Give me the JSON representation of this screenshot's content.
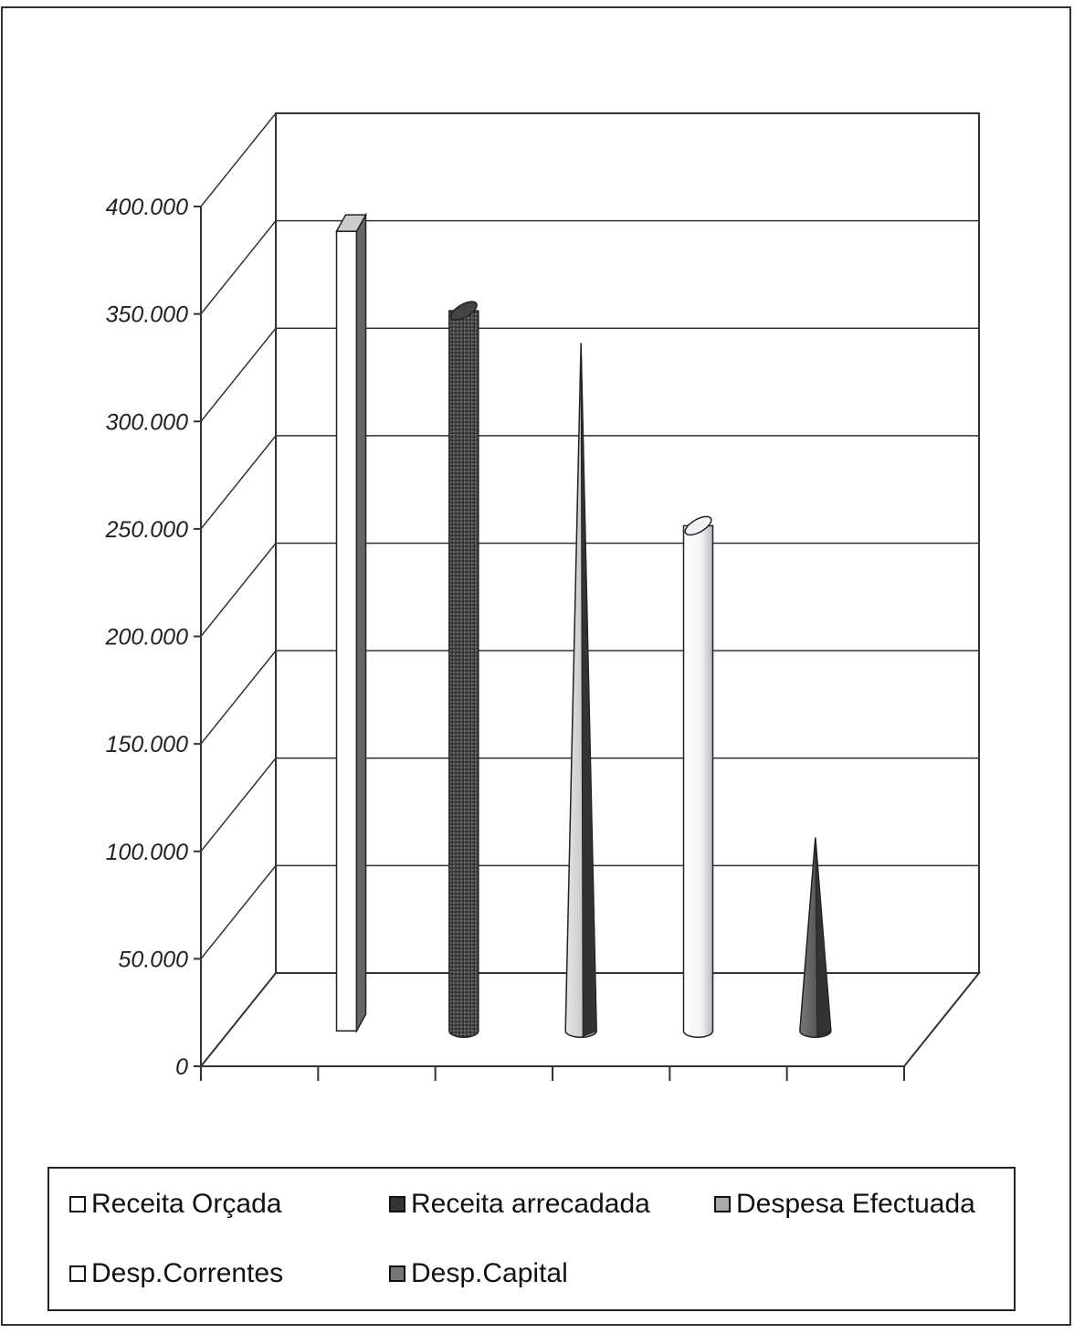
{
  "chart_data": {
    "type": "bar",
    "style": "3d-column",
    "categories": [
      ""
    ],
    "series": [
      {
        "name": "Receita Orçada",
        "values": [
          372000
        ],
        "shape": "box",
        "color": "#ffffff"
      },
      {
        "name": "Receita arrecadada",
        "values": [
          335000
        ],
        "shape": "cylinder",
        "color": "#555555"
      },
      {
        "name": "Despesa Efectuada",
        "values": [
          320000
        ],
        "shape": "cone",
        "color": "#cccccc"
      },
      {
        "name": "Desp.Correntes",
        "values": [
          235000
        ],
        "shape": "cylinder",
        "color": "#ffffff"
      },
      {
        "name": "Desp.Capital",
        "values": [
          90000
        ],
        "shape": "cone",
        "color": "#555555"
      }
    ],
    "ylim": [
      0,
      400000
    ],
    "y_ticks": [
      "0",
      "50.000",
      "100.000",
      "150.000",
      "200.000",
      "250.000",
      "300.000",
      "350.000",
      "400.000"
    ],
    "grid": true,
    "legend_placement": "bottom"
  },
  "legend": {
    "items": [
      {
        "label": "Receita Orçada",
        "swatch": "#ffffff"
      },
      {
        "label": "Receita arrecadada",
        "swatch": "#333333"
      },
      {
        "label": "Despesa Efectuada",
        "swatch": "#aaaaaa"
      },
      {
        "label": "Desp.Correntes",
        "swatch": "#ffffff"
      },
      {
        "label": "Desp.Capital",
        "swatch": "#777777"
      }
    ]
  }
}
